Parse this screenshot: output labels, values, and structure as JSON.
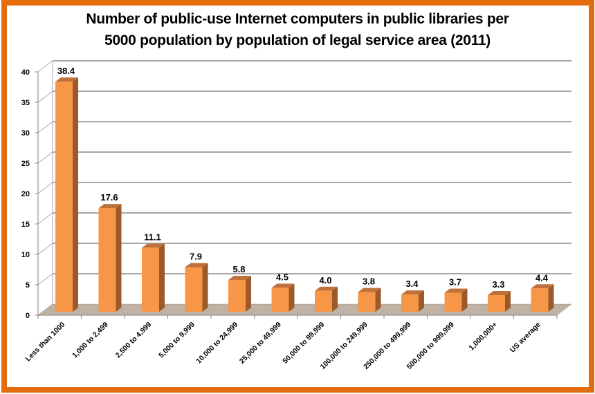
{
  "chart_data": {
    "type": "bar",
    "title": "Number of public-use Internet computers in public libraries per 5000 population by population of legal service area (2011)",
    "title_lines": [
      "Number of public-use Internet computers in public libraries per",
      "5000 population by population of legal service area (2011)"
    ],
    "categories": [
      "Less than 1000",
      "1,000 to 2,499",
      "2,500 to 4,999",
      "5,000 to 9,999",
      "10,000 to 24,999",
      "25,000 to 49,999",
      "50,000 to 99,999",
      "100,000 to 249,999",
      "250,000 to 499,999",
      "500,000 to 999,999",
      "1,000,000+",
      "US average"
    ],
    "values": [
      38.4,
      17.6,
      11.1,
      7.9,
      5.8,
      4.5,
      4.0,
      3.8,
      3.4,
      3.7,
      3.3,
      4.4
    ],
    "value_labels": [
      "38.4",
      "17.6",
      "11.1",
      "7.9",
      "5.8",
      "4.5",
      "4.0",
      "3.8",
      "3.4",
      "3.7",
      "3.3",
      "4.4"
    ],
    "xlabel": "",
    "ylabel": "",
    "ylim": [
      0,
      40
    ],
    "yticks": [
      0,
      5,
      10,
      15,
      20,
      25,
      30,
      35,
      40
    ],
    "grid": true,
    "legend": "none",
    "style": "3d-column",
    "colors": {
      "bar_front": "#F79646",
      "bar_side": "#9C5A2B",
      "bar_top": "#C0703A",
      "floor": "#BFB2A4",
      "frame_border": "#E46C0A",
      "gridline": "#A6A6A6"
    }
  }
}
